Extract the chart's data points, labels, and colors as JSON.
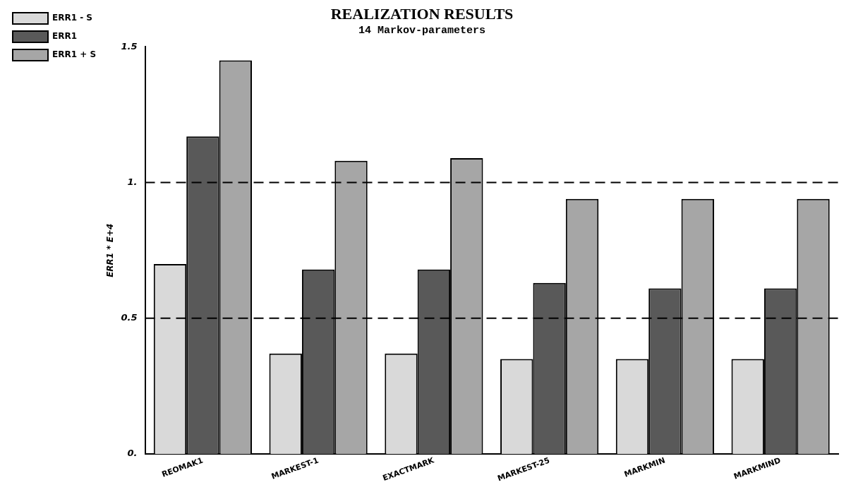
{
  "chart_data": {
    "type": "bar",
    "title": "REALIZATION RESULTS",
    "subtitle": "14 Markov-parameters",
    "ylabel": "ERR1 * E+4",
    "categories": [
      "REOMAK1",
      "MARKEST-1",
      "EXACTMARK",
      "MARKEST-25",
      "MARKMIN",
      "MARKMIND"
    ],
    "series": [
      {
        "name": "ERR1 - S",
        "color": "#d9d9d9",
        "values": [
          0.7,
          0.37,
          0.37,
          0.35,
          0.35,
          0.35
        ]
      },
      {
        "name": "ERR1",
        "color": "#595959",
        "values": [
          1.17,
          0.68,
          0.68,
          0.63,
          0.61,
          0.61
        ]
      },
      {
        "name": "ERR1 + S",
        "color": "#a6a6a6",
        "values": [
          1.45,
          1.08,
          1.09,
          0.94,
          0.94,
          0.94
        ]
      }
    ],
    "ylim": [
      0,
      1.5
    ],
    "yticks": [
      {
        "value": 0,
        "label": "0."
      },
      0.5,
      {
        "value": 1,
        "label": "1."
      },
      1.5
    ],
    "ref_lines": [
      {
        "axis": "y",
        "value": 0.5,
        "line_style": "dashed",
        "color": "#000000"
      },
      {
        "axis": "y",
        "value": 1,
        "line_style": "dashed",
        "color": "#000000"
      }
    ],
    "grid": false,
    "legend": "top left"
  }
}
